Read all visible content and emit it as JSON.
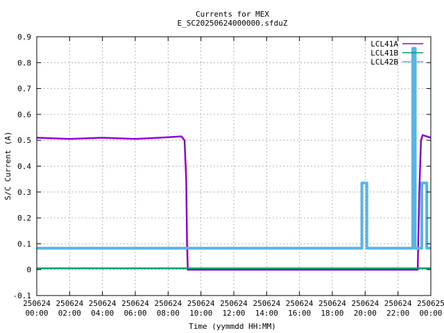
{
  "chart_data": {
    "type": "line",
    "title": "Currents for MEX",
    "subtitle": "E_SC20250624000000.sfduZ",
    "xlabel": "Time (yymmdd HH:MM)",
    "ylabel": "S/C Current (A)",
    "ylim": [
      -0.1,
      0.9
    ],
    "yticks": [
      "-0.1",
      "0",
      "0.1",
      "0.2",
      "0.3",
      "0.4",
      "0.5",
      "0.6",
      "0.7",
      "0.8",
      "0.9"
    ],
    "xlim_hours": [
      0,
      24
    ],
    "xticks": [
      {
        "date": "250624",
        "time": "00:00"
      },
      {
        "date": "250624",
        "time": "02:00"
      },
      {
        "date": "250624",
        "time": "04:00"
      },
      {
        "date": "250624",
        "time": "06:00"
      },
      {
        "date": "250624",
        "time": "08:00"
      },
      {
        "date": "250624",
        "time": "10:00"
      },
      {
        "date": "250624",
        "time": "12:00"
      },
      {
        "date": "250624",
        "time": "14:00"
      },
      {
        "date": "250624",
        "time": "16:00"
      },
      {
        "date": "250624",
        "time": "18:00"
      },
      {
        "date": "250624",
        "time": "20:00"
      },
      {
        "date": "250624",
        "time": "22:00"
      },
      {
        "date": "250625",
        "time": "00:00"
      }
    ],
    "grid": true,
    "legend_position": "top-right",
    "series": [
      {
        "name": "LCL41A",
        "color": "#9400d3",
        "points": [
          [
            0,
            0.51
          ],
          [
            2,
            0.505
          ],
          [
            4,
            0.51
          ],
          [
            6,
            0.505
          ],
          [
            7.5,
            0.51
          ],
          [
            8.8,
            0.515
          ],
          [
            9.0,
            0.5
          ],
          [
            9.1,
            0.35
          ],
          [
            9.15,
            0.1
          ],
          [
            9.2,
            0.0
          ],
          [
            12,
            0.0
          ],
          [
            16,
            0.0
          ],
          [
            20,
            0.0
          ],
          [
            22.5,
            0.0
          ],
          [
            23.2,
            0.0
          ],
          [
            23.3,
            0.3
          ],
          [
            23.4,
            0.5
          ],
          [
            23.5,
            0.52
          ],
          [
            24,
            0.51
          ]
        ]
      },
      {
        "name": "LCL41B",
        "color": "#009e73",
        "points": [
          [
            0,
            0.005
          ],
          [
            24,
            0.005
          ]
        ]
      },
      {
        "name": "LCL42B",
        "color": "#56b4e9",
        "points": [
          [
            0,
            0.083
          ],
          [
            19.8,
            0.083
          ],
          [
            19.8,
            0.335
          ],
          [
            20.1,
            0.335
          ],
          [
            20.1,
            0.083
          ],
          [
            22.9,
            0.083
          ],
          [
            22.9,
            0.855
          ],
          [
            23.05,
            0.855
          ],
          [
            23.05,
            0.083
          ],
          [
            23.45,
            0.083
          ],
          [
            23.45,
            0.335
          ],
          [
            23.75,
            0.335
          ],
          [
            23.75,
            0.083
          ],
          [
            24,
            0.083
          ]
        ]
      }
    ]
  }
}
